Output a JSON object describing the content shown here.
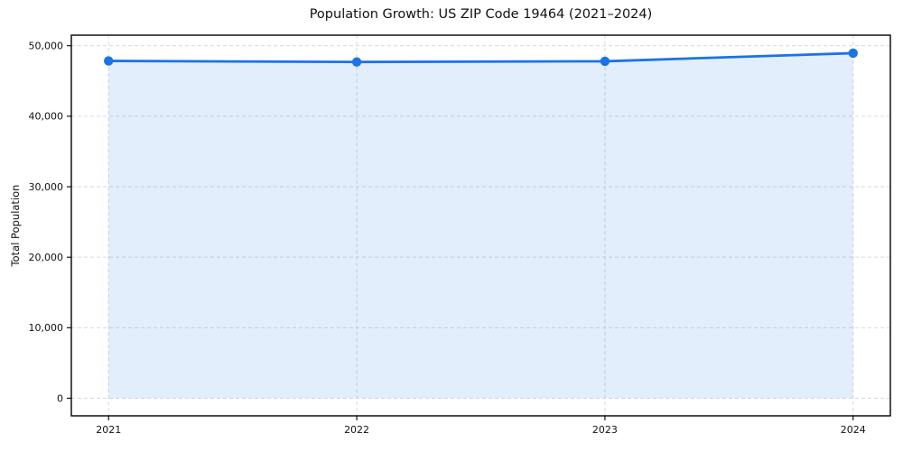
{
  "chart_data": {
    "type": "line",
    "title": "Population Growth: US ZIP Code 19464 (2021–2024)",
    "xlabel": "",
    "ylabel": "Total Population",
    "x": [
      2021,
      2022,
      2023,
      2024
    ],
    "x_tick_labels": [
      "2021",
      "2022",
      "2023",
      "2024"
    ],
    "series": [
      {
        "name": "Total Population",
        "values": [
          47850,
          47700,
          47800,
          48950
        ]
      }
    ],
    "y_ticks": [
      0,
      10000,
      20000,
      30000,
      40000,
      50000
    ],
    "y_tick_labels": [
      "0",
      "10,000",
      "20,000",
      "30,000",
      "40,000",
      "50,000"
    ],
    "xlim": [
      2020.85,
      2024.15
    ],
    "ylim": [
      -2500,
      51500
    ],
    "grid": true,
    "grid_style": "dashed",
    "legend": "none",
    "marker": "circle",
    "area_fill": true,
    "colors": {
      "line": "#1a73e8",
      "marker": "#1a73e8",
      "fill": "#1a73e8",
      "fill_opacity": 0.12,
      "grid": "#d9d9d9",
      "spine": "#000000",
      "text": "#111111",
      "background": "#ffffff"
    }
  }
}
